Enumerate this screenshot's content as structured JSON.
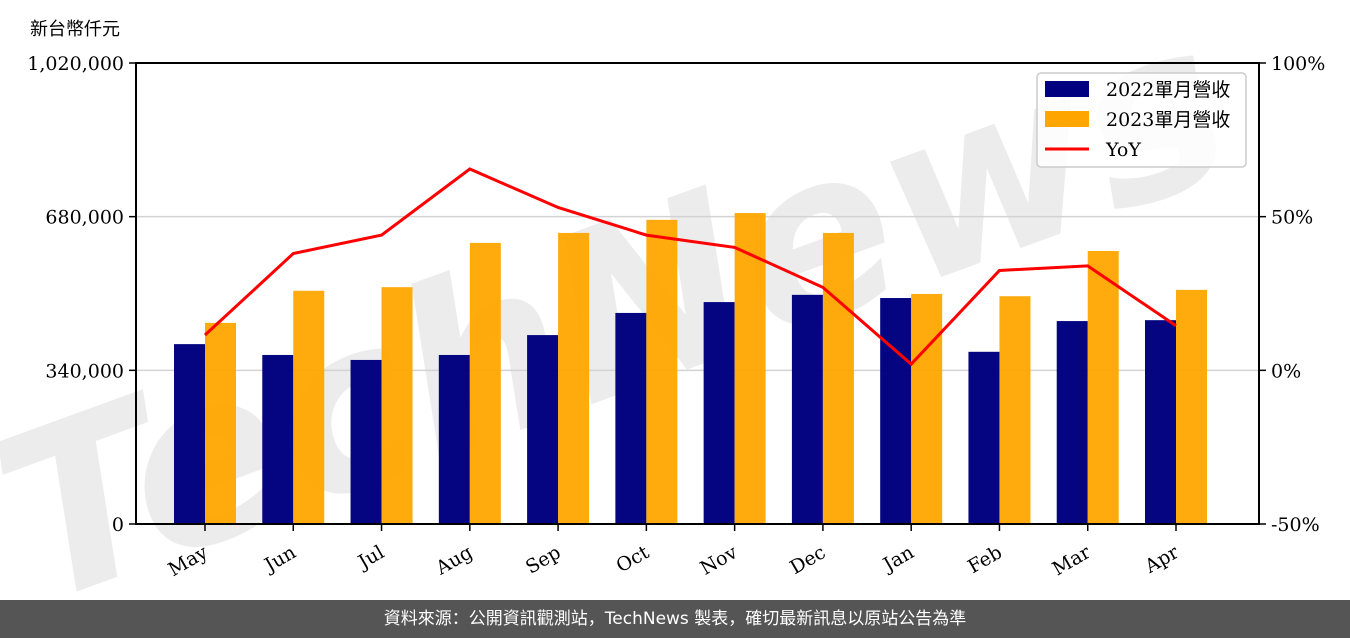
{
  "unit_label": "新台幣仟元",
  "footer": "資料來源：公開資訊觀測站，TechNews 製表，確切最新訊息以原站公告為準",
  "watermark": "TechNews",
  "colors": {
    "series_2022": "#000080",
    "series_2023": "#FFA500",
    "yoy": "#FF0000",
    "grid": "#d3d3d3",
    "footer_bg": "#555555"
  },
  "chart_data": {
    "type": "bar",
    "title": "",
    "xlabel": "",
    "ylabel": "新台幣仟元",
    "y2label": "",
    "categories": [
      "May",
      "Jun",
      "Jul",
      "Aug",
      "Sep",
      "Oct",
      "Nov",
      "Dec",
      "Jan",
      "Feb",
      "Mar",
      "Apr"
    ],
    "series": [
      {
        "name": "2022單月營收",
        "type": "bar",
        "axis": "left",
        "values": [
          398000,
          374000,
          363000,
          374000,
          418000,
          467000,
          491000,
          507000,
          500000,
          381000,
          449000,
          451000
        ]
      },
      {
        "name": "2023單月營收",
        "type": "bar",
        "axis": "left",
        "values": [
          445000,
          516000,
          524000,
          622000,
          644000,
          673000,
          688000,
          644000,
          509000,
          504000,
          604000,
          518000
        ]
      },
      {
        "name": "YoY",
        "type": "line",
        "axis": "right",
        "unit": "%",
        "values": [
          11.5,
          38,
          44,
          65.5,
          53,
          44,
          40,
          27,
          2,
          32.5,
          34,
          14.5
        ]
      }
    ],
    "ylim": [
      0,
      1020000
    ],
    "yticks": [
      0,
      340000,
      680000,
      1020000
    ],
    "ytick_labels": [
      "0",
      "340,000",
      "680,000",
      "1,020,000"
    ],
    "y2lim": [
      -50,
      100
    ],
    "y2ticks": [
      -50,
      0,
      50,
      100
    ],
    "y2tick_labels": [
      "-50%",
      "0%",
      "50%",
      "100%"
    ],
    "grid": true,
    "legend_position": "upper right"
  }
}
